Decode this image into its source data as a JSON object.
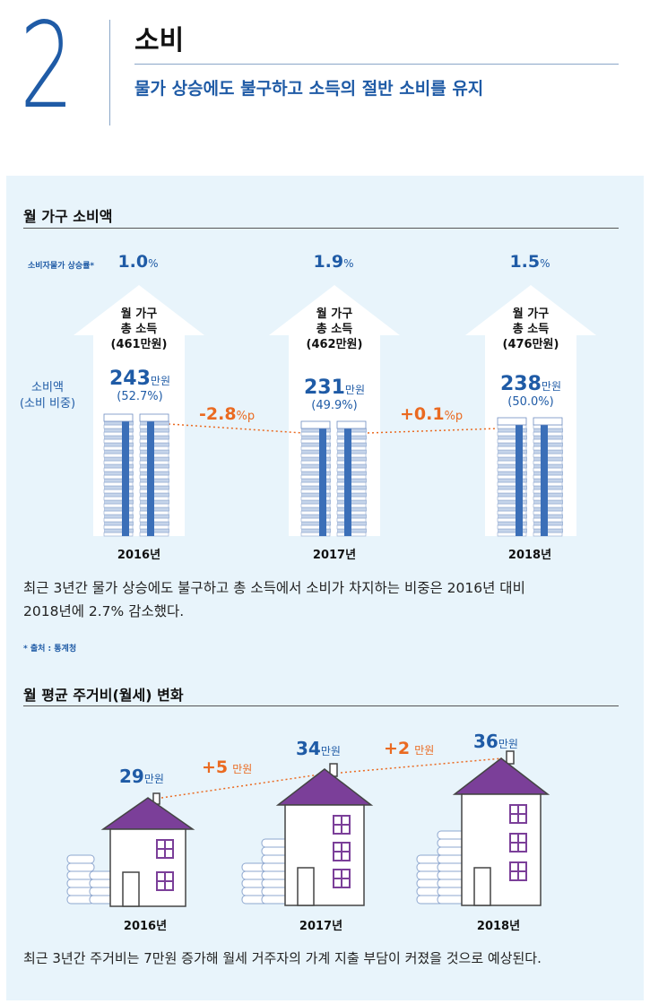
{
  "header": {
    "number": "2",
    "title": "소비",
    "subtitle": "물가 상승에도 불구하고 소득의 절반 소비를 유지"
  },
  "section1": {
    "title": "월 가구 소비액",
    "cpi_label": "소비자물가 상승률*",
    "consumption_label_line1": "소비액",
    "consumption_label_line2": "(소비 비중)",
    "years": [
      {
        "year": "2016년",
        "cpi": "1.0",
        "income_l1": "월 가구",
        "income_l2": "총 소득",
        "income_l3": "(461만원)",
        "amount": "243",
        "unit": "만원",
        "share": "(52.7%)"
      },
      {
        "year": "2017년",
        "cpi": "1.9",
        "income_l1": "월 가구",
        "income_l2": "총 소득",
        "income_l3": "(462만원)",
        "amount": "231",
        "unit": "만원",
        "share": "(49.9%)"
      },
      {
        "year": "2018년",
        "cpi": "1.5",
        "income_l1": "월 가구",
        "income_l2": "총 소득",
        "income_l3": "(476만원)",
        "amount": "238",
        "unit": "만원",
        "share": "(50.0%)"
      }
    ],
    "pct": "%",
    "diffs": [
      {
        "value": "-2.8",
        "unit": "%p"
      },
      {
        "value": "+0.1",
        "unit": "%p"
      }
    ],
    "description_l1": "최근 3년간 물가 상승에도 불구하고 총 소득에서 소비가 차지하는 비중은 2016년 대비",
    "description_l2": "2018년에 2.7% 감소했다.",
    "source": "* 출처 : 통계청"
  },
  "section2": {
    "title": "월 평균 주거비(월세) 변화",
    "years": [
      {
        "year": "2016년",
        "amount": "29",
        "unit": "만원"
      },
      {
        "year": "2017년",
        "amount": "34",
        "unit": "만원"
      },
      {
        "year": "2018년",
        "amount": "36",
        "unit": "만원"
      }
    ],
    "diffs": [
      {
        "value": "+5",
        "unit": "만원"
      },
      {
        "value": "+2",
        "unit": "만원"
      }
    ],
    "description": "최근 3년간 주거비는 7만원 증가해 월세 거주자의 가계 지출 부담이 커졌을 것으로 예상된다."
  },
  "chart_data": [
    {
      "type": "bar",
      "title": "월 가구 소비액",
      "categories": [
        "2016년",
        "2017년",
        "2018년"
      ],
      "series": [
        {
          "name": "소비액(만원)",
          "values": [
            243,
            231,
            238
          ]
        },
        {
          "name": "소비 비중(%)",
          "values": [
            52.7,
            49.9,
            50.0
          ]
        },
        {
          "name": "월 가구 총 소득(만원)",
          "values": [
            461,
            462,
            476
          ]
        },
        {
          "name": "소비자물가 상승률(%)",
          "values": [
            1.0,
            1.9,
            1.5
          ]
        }
      ]
    },
    {
      "type": "line",
      "title": "월 평균 주거비(월세) 변화",
      "categories": [
        "2016년",
        "2017년",
        "2018년"
      ],
      "values": [
        29,
        34,
        36
      ],
      "unit": "만원"
    }
  ],
  "colors": {
    "blue": "#1f5ba6",
    "orange": "#ea6a21",
    "purple": "#7b3f99",
    "panel": "#e8f4fb"
  }
}
